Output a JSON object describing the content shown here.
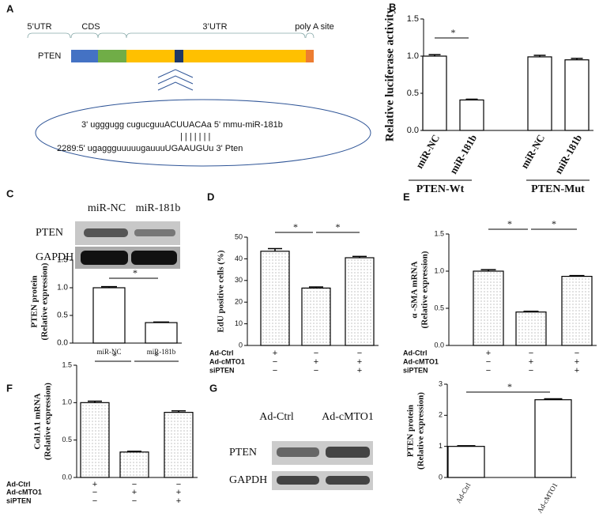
{
  "panel_labels": [
    "A",
    "B",
    "C",
    "D",
    "E",
    "F",
    "G"
  ],
  "diagram": {
    "gene": "PTEN",
    "regions": [
      "5’UTR",
      "CDS",
      "3’UTR",
      "poly A site"
    ],
    "binding": [
      "3' ugggugg cugucguuACUUACAa 5' mmu-miR-181b",
      "| | | | | | |",
      "2289:5' ugaggguuuuugauuuUGAAUGUu 3' Pten"
    ]
  },
  "blots": [
    {
      "lanes": [
        "miR-NC",
        "miR-181b"
      ],
      "rows": [
        "PTEN",
        "GAPDH"
      ]
    },
    {
      "lanes": [
        "Ad-Ctrl",
        "Ad-cMTO1"
      ],
      "rows": [
        "PTEN",
        "GAPDH"
      ]
    }
  ],
  "chart_data": [
    {
      "type": "bar",
      "ylabel": [
        "Relative luciferase activity"
      ],
      "categories": [
        "miR-NC",
        "miR-181b",
        "miR-NC",
        "miR-181b"
      ],
      "values": [
        1.0,
        0.41,
        0.99,
        0.95
      ],
      "errors": [
        0.02,
        0.01,
        0.02,
        0.02
      ],
      "groups": [
        "PTEN-Wt",
        "PTEN-Mut"
      ],
      "ylim": [
        0,
        1.5
      ],
      "yticks": [
        {
          "value": 0,
          "label": "0.0"
        },
        {
          "value": 0.5,
          "label": "0.5"
        },
        {
          "value": 1,
          "label": "1.0"
        },
        {
          "value": 1.5,
          "label": "1.5"
        }
      ],
      "annotations": [
        "*"
      ],
      "fill": "white"
    },
    {
      "type": "bar",
      "ylabel": [
        "PTEN protein",
        "(Relative expression)"
      ],
      "categories": [
        "miR-NC",
        "miR-181b"
      ],
      "values": [
        1.0,
        0.37
      ],
      "errors": [
        0.02,
        0.01
      ],
      "ylim": [
        0,
        1.5
      ],
      "yticks": [
        {
          "value": 0,
          "label": "0.0"
        },
        {
          "value": 0.5,
          "label": "0.5"
        },
        {
          "value": 1,
          "label": "1.0"
        },
        {
          "value": 1.5,
          "label": "1.5"
        }
      ],
      "annotations": [
        "*"
      ],
      "fill": "white"
    },
    {
      "type": "bar",
      "ylabel": [
        "EdU positive cells (%)"
      ],
      "values": [
        43.5,
        26.5,
        40.5
      ],
      "errors": [
        1.2,
        0.5,
        0.6
      ],
      "conditions": [
        {
          "name": "Ad-Ctrl",
          "signs": [
            "+",
            "−",
            "−"
          ]
        },
        {
          "name": "Ad-cMTO1",
          "signs": [
            "−",
            "+",
            "+"
          ]
        },
        {
          "name": "siPTEN",
          "signs": [
            "−",
            "−",
            "+"
          ]
        }
      ],
      "ylim": [
        0,
        50
      ],
      "yticks": [
        0,
        10,
        20,
        30,
        40,
        50
      ],
      "annotations": [
        "*",
        "*"
      ],
      "fill": "dots"
    },
    {
      "type": "bar",
      "ylabel": [
        "α -SMA mRNA",
        "(Relative expression)"
      ],
      "values": [
        1.0,
        0.45,
        0.93
      ],
      "errors": [
        0.02,
        0.01,
        0.01
      ],
      "conditions": [
        {
          "name": "Ad-Ctrl",
          "signs": [
            "+",
            "−",
            "−"
          ]
        },
        {
          "name": "Ad-cMTO1",
          "signs": [
            "−",
            "+",
            "+"
          ]
        },
        {
          "name": "siPTEN",
          "signs": [
            "−",
            "−",
            "+"
          ]
        }
      ],
      "ylim": [
        0,
        1.5
      ],
      "yticks": [
        {
          "value": 0,
          "label": "0.0"
        },
        {
          "value": 0.5,
          "label": "0.5"
        },
        {
          "value": 1,
          "label": "1.0"
        },
        {
          "value": 1.5,
          "label": "1.5"
        }
      ],
      "annotations": [
        "*",
        "*"
      ],
      "fill": "dots"
    },
    {
      "type": "bar",
      "ylabel": [
        "Col1A1 mRNA",
        "(Relative expression)"
      ],
      "values": [
        1.0,
        0.34,
        0.87
      ],
      "errors": [
        0.02,
        0.01,
        0.02
      ],
      "conditions": [
        {
          "name": "Ad-Ctrl",
          "signs": [
            "+",
            "−",
            "−"
          ]
        },
        {
          "name": "Ad-cMTO1",
          "signs": [
            "−",
            "+",
            "+"
          ]
        },
        {
          "name": "siPTEN",
          "signs": [
            "−",
            "−",
            "+"
          ]
        }
      ],
      "ylim": [
        0,
        1.5
      ],
      "yticks": [
        {
          "value": 0,
          "label": "0.0"
        },
        {
          "value": 0.5,
          "label": "0.5"
        },
        {
          "value": 1,
          "label": "1.0"
        },
        {
          "value": 1.5,
          "label": "1.5"
        }
      ],
      "annotations": [
        "*",
        "*"
      ],
      "fill": "dots"
    },
    {
      "type": "bar",
      "ylabel": [
        "PTEN protein",
        "(Relative expression)"
      ],
      "categories": [
        "Ad-Ctrl",
        "Ad-cMTO1"
      ],
      "values": [
        1.0,
        2.5
      ],
      "errors": [
        0.02,
        0.03
      ],
      "ylim": [
        0,
        3
      ],
      "yticks": [
        0,
        1,
        2,
        3
      ],
      "annotations": [
        "*"
      ],
      "fill": "white"
    }
  ]
}
